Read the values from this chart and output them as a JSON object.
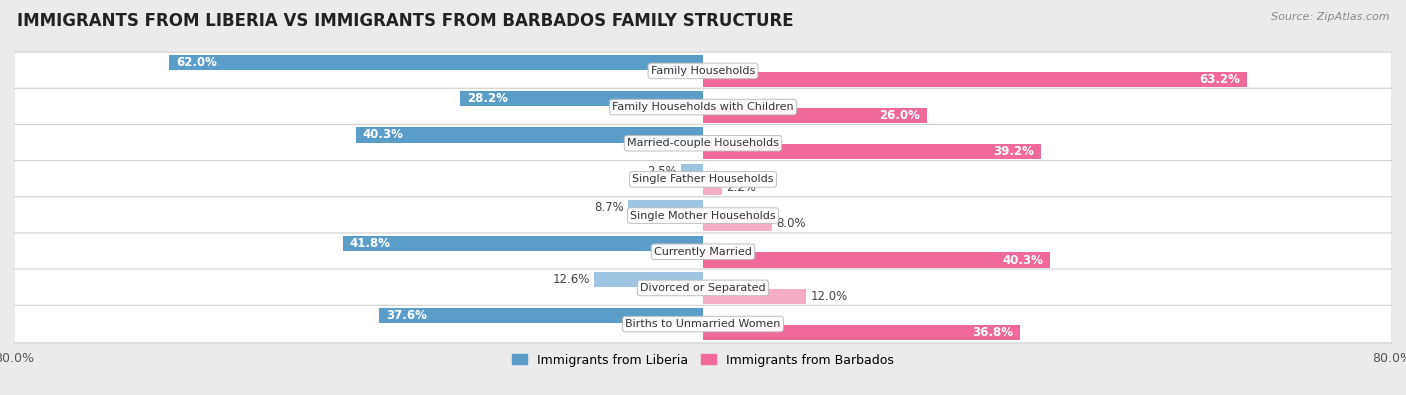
{
  "title": "IMMIGRANTS FROM LIBERIA VS IMMIGRANTS FROM BARBADOS FAMILY STRUCTURE",
  "source": "Source: ZipAtlas.com",
  "categories": [
    "Family Households",
    "Family Households with Children",
    "Married-couple Households",
    "Single Father Households",
    "Single Mother Households",
    "Currently Married",
    "Divorced or Separated",
    "Births to Unmarried Women"
  ],
  "liberia_values": [
    62.0,
    28.2,
    40.3,
    2.5,
    8.7,
    41.8,
    12.6,
    37.6
  ],
  "barbados_values": [
    63.2,
    26.0,
    39.2,
    2.2,
    8.0,
    40.3,
    12.0,
    36.8
  ],
  "liberia_color_dark": "#5b9dc9",
  "liberia_color_light": "#9dc4e0",
  "barbados_color_dark": "#f0699a",
  "barbados_color_light": "#f5adc6",
  "xlim": 80.0,
  "background_color": "#ebebeb",
  "row_bg_color": "#ffffff",
  "row_border_color": "#d0d0d0",
  "label_fontsize": 8.5,
  "title_fontsize": 12,
  "legend_label_liberia": "Immigrants from Liberia",
  "legend_label_barbados": "Immigrants from Barbados",
  "value_threshold": 15
}
